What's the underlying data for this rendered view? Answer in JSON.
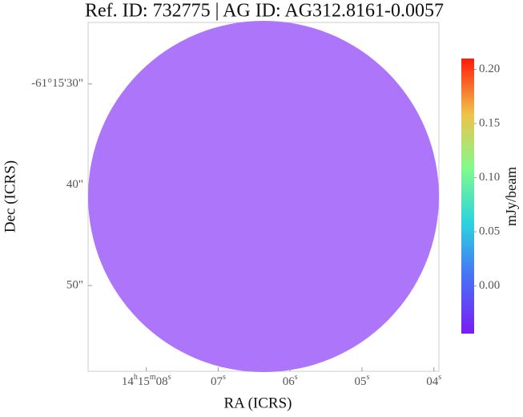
{
  "chart_data": {
    "type": "image",
    "title": "Ref. ID: 732775 | AG ID: AG312.8161-0.0057",
    "x_label": "RA (ICRS)",
    "y_label": "Dec (ICRS)",
    "xlim": [
      8.81,
      3.93
    ],
    "xticks": [
      {
        "value": 8,
        "label": "14h15m08s"
      },
      {
        "value": 7,
        "label": "07s"
      },
      {
        "value": 6,
        "label": "06s"
      },
      {
        "value": 5,
        "label": "05s"
      },
      {
        "value": 4,
        "label": "04s"
      }
    ],
    "ylim": [
      23.9,
      58.5
    ],
    "yticks": [
      {
        "value": 30,
        "label": "-61°15'30\""
      },
      {
        "value": 40,
        "label": "40\""
      },
      {
        "value": 50,
        "label": "50\""
      }
    ],
    "colorbar": {
      "label": "mJy/beam",
      "clim": [
        -0.044,
        0.21
      ],
      "ticks": [
        {
          "value": 0,
          "label": "0.00"
        },
        {
          "value": 0.05,
          "label": "0.05"
        },
        {
          "value": 0.1,
          "label": "0.10"
        },
        {
          "value": 0.15,
          "label": "0.15"
        },
        {
          "value": 0.2,
          "label": "0.20"
        }
      ]
    }
  }
}
